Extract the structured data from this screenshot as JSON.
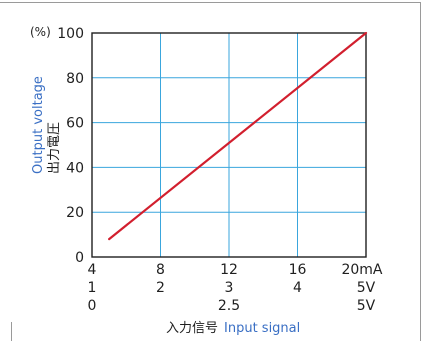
{
  "chart_data": {
    "type": "line",
    "title": "",
    "y_unit": "(%)",
    "ylabel_en": "Output voltage",
    "ylabel_jp": "出力電圧",
    "xlabel_jp": "入力信号",
    "xlabel_en": "Input signal",
    "xlim": [
      4,
      20
    ],
    "ylim": [
      0,
      100
    ],
    "y_ticks": [
      "0",
      "20",
      "40",
      "60",
      "80",
      "100"
    ],
    "x_tick_rows": [
      [
        "4",
        "8",
        "12",
        "16",
        "20mA"
      ],
      [
        "1",
        "2",
        "3",
        "4",
        "5V"
      ],
      [
        "0",
        "",
        "2.5",
        "",
        "5V"
      ]
    ],
    "grid": true,
    "series": [
      {
        "x": [
          5,
          20
        ],
        "y": [
          8,
          100
        ]
      }
    ],
    "colors": {
      "line": "#d21f2e",
      "grid": "#3aa6dd",
      "axis": "#1f1f1f",
      "english_label": "#3a6fc4"
    }
  }
}
